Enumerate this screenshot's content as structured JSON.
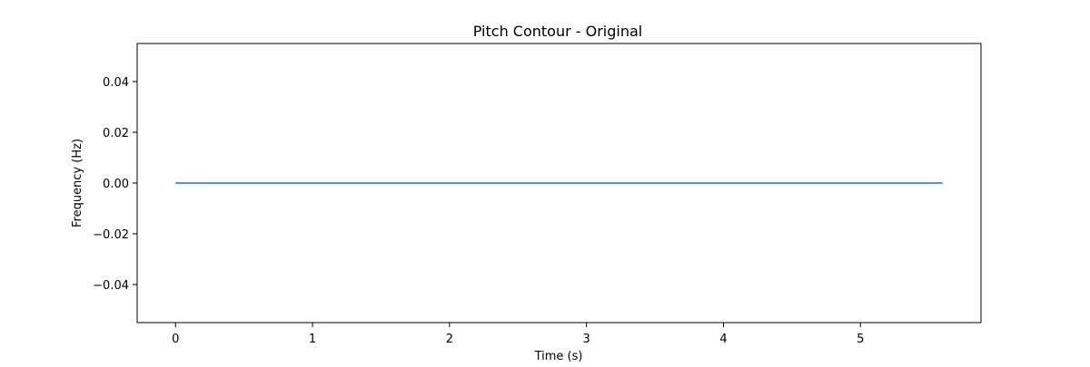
{
  "chart_data": {
    "type": "line",
    "title": "Pitch Contour - Original",
    "xlabel": "Time (s)",
    "ylabel": "Frequency (Hz)",
    "xlim": [
      -0.28,
      5.88
    ],
    "ylim": [
      -0.055,
      0.055
    ],
    "xticks": [
      0,
      1,
      2,
      3,
      4,
      5
    ],
    "xtick_labels": [
      "0",
      "1",
      "2",
      "3",
      "4",
      "5"
    ],
    "yticks": [
      -0.04,
      -0.02,
      0.0,
      0.02,
      0.04
    ],
    "ytick_labels": [
      "−0.04",
      "−0.02",
      "0.00",
      "0.02",
      "0.04"
    ],
    "grid": false,
    "series": [
      {
        "color": "#1f77b4",
        "x": [
          0,
          5.6
        ],
        "y": [
          0.0,
          0.0
        ]
      }
    ]
  }
}
